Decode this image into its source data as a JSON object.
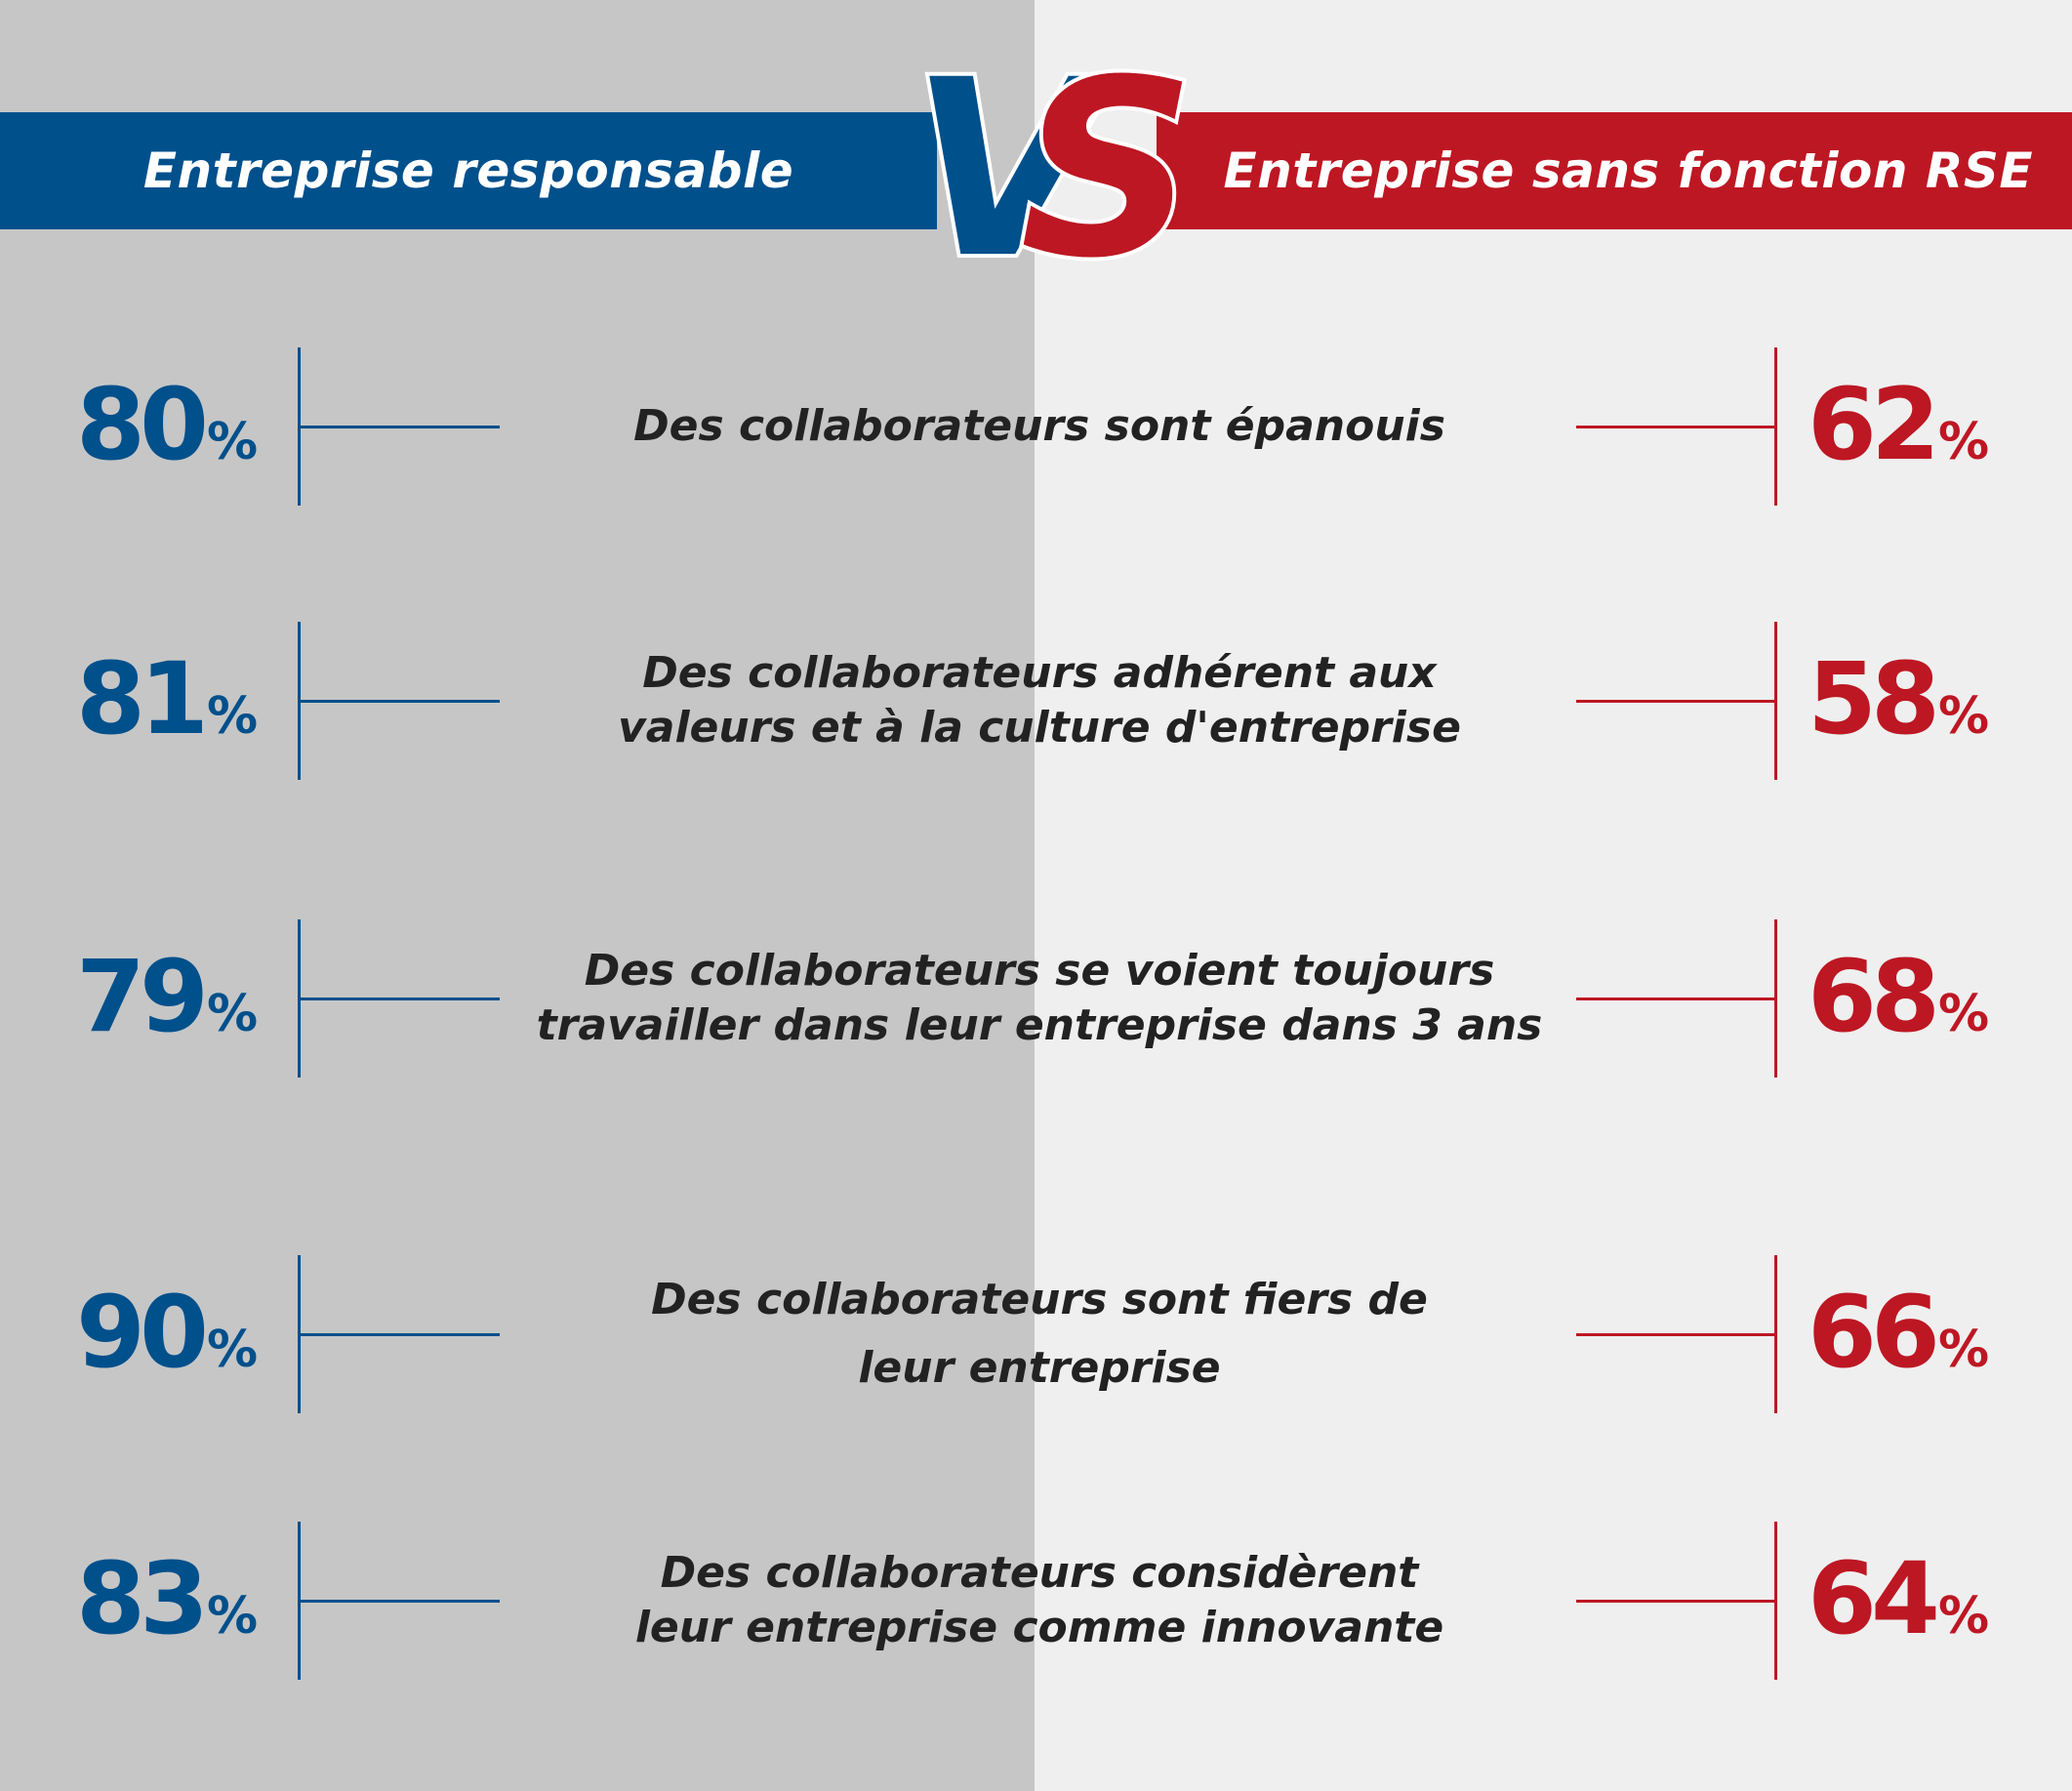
{
  "header": {
    "left_label": "Entreprise responsable",
    "right_label": "Entreprise sans fonction RSE",
    "vs_v": "V",
    "vs_s": "S"
  },
  "colors": {
    "left_brand": "#00508c",
    "right_brand": "#bd1723",
    "left_background": "#c6c6c6",
    "right_background": "#efefef",
    "label_text": "#222222"
  },
  "chart_data": {
    "type": "table",
    "title": "",
    "columns": [
      "Entreprise responsable",
      "Entreprise sans fonction RSE"
    ],
    "unit": "%",
    "rows": [
      {
        "label": "Des collaborateurs sont épanouis",
        "left_value": "80",
        "right_value": "62"
      },
      {
        "label": "Des collaborateurs adhérent aux\nvaleurs et à la culture d'entreprise",
        "left_value": "81",
        "right_value": "58"
      },
      {
        "label": "Des collaborateurs se voient toujours\ntravailler dans leur entreprise dans 3 ans",
        "left_value": "79",
        "right_value": "68"
      },
      {
        "label": "Des collaborateurs sont fiers de\nleur entreprise",
        "left_value": "90",
        "right_value": "66"
      },
      {
        "label": "Des collaborateurs considèrent\nleur entreprise comme innovante",
        "left_value": "83",
        "right_value": "64"
      }
    ]
  }
}
